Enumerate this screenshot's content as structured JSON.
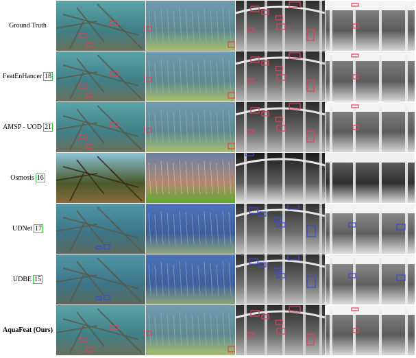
{
  "rows": [
    {
      "method": "Ground Truth",
      "ref": "",
      "style": "gt",
      "bold": false,
      "box_color": "#e0405a"
    },
    {
      "method": "FeatEnHancer",
      "ref": "18",
      "style": "gt",
      "bold": false,
      "box_color": "#e0405a"
    },
    {
      "method": "AMSP - UOD",
      "ref": "21",
      "style": "gt",
      "bold": false,
      "box_color": "#e0405a"
    },
    {
      "method": "Osmosis",
      "ref": "16",
      "style": "osmosis",
      "bold": false,
      "box_color": "#3f48d8"
    },
    {
      "method": "UDNet",
      "ref": "17",
      "style": "blue",
      "bold": false,
      "box_color": "#3f48d8"
    },
    {
      "method": "UDBE",
      "ref": "15",
      "style": "blue",
      "bold": false,
      "box_color": "#3f48d8"
    },
    {
      "method": "AquaFeat (Ours)",
      "ref": "",
      "style": "gt",
      "bold": true,
      "box_color": "#e0405a"
    }
  ],
  "ref_box_color": "#2fd12f",
  "scene_icons": [
    "coral-scene-icon",
    "seagrass-scene-icon",
    "cage-scene-icon",
    "seabed-scene-icon"
  ]
}
